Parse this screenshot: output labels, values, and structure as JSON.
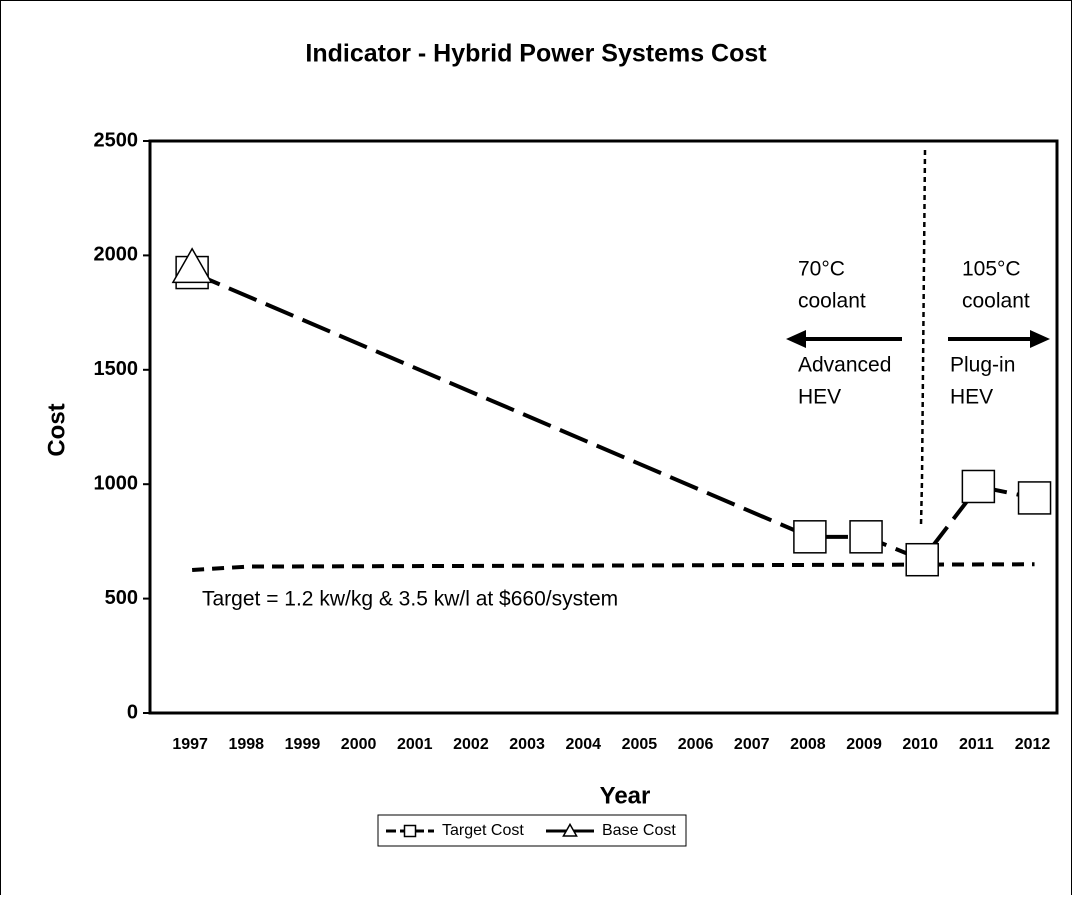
{
  "chart_data": {
    "type": "line",
    "title": "Indicator - Hybrid Power Systems Cost",
    "x_label": "Year",
    "y_label": "Cost",
    "x": [
      1997,
      2008,
      2009,
      2010,
      2011,
      2012
    ],
    "series": [
      {
        "name": "Target Cost",
        "color": "#000000",
        "marker": "square",
        "values": [
          1925,
          770,
          770,
          670,
          990,
          940
        ]
      },
      {
        "name": "Base Cost",
        "color": "#000000",
        "marker": "triangle",
        "values": [
          1945,
          null,
          null,
          null,
          null,
          null
        ]
      }
    ],
    "target_line": {
      "x": [
        1997,
        1998,
        2012
      ],
      "values": [
        625,
        640,
        650
      ],
      "label": "Target = 1.2 kw/kg & 3.5 kw/l at $660/system"
    },
    "annotations": [
      {
        "lines": [
          "70°C",
          "coolant"
        ]
      },
      {
        "lines": [
          "Advanced",
          "HEV"
        ]
      },
      {
        "lines": [
          "105°C",
          "coolant"
        ]
      },
      {
        "lines": [
          "Plug-in",
          "HEV"
        ]
      }
    ],
    "xlim": [
      1996.25,
      2012.4
    ],
    "xticks": [
      1997,
      1998,
      1999,
      2000,
      2001,
      2002,
      2003,
      2004,
      2005,
      2006,
      2007,
      2008,
      2009,
      2010,
      2011,
      2012
    ],
    "ylim": [
      0,
      2500
    ],
    "yticks": [
      0,
      500,
      1000,
      1500,
      2000,
      2500
    ],
    "grid": false,
    "legend": "bottom"
  }
}
